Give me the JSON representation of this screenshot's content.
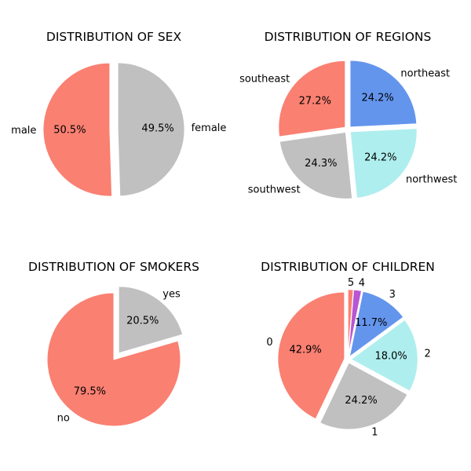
{
  "chart_data": [
    {
      "type": "pie",
      "title": "DISTRIBUTION OF SEX",
      "slices": [
        {
          "label": "male",
          "value": 50.5,
          "pct_label": "50.5%",
          "color": "#fa8072"
        },
        {
          "label": "female",
          "value": 49.5,
          "pct_label": "49.5%",
          "color": "#c0c0c0"
        }
      ]
    },
    {
      "type": "pie",
      "title": "DISTRIBUTION OF REGIONS",
      "slices": [
        {
          "label": "southeast",
          "value": 27.2,
          "pct_label": "27.2%",
          "color": "#fa8072"
        },
        {
          "label": "southwest",
          "value": 24.3,
          "pct_label": "24.3%",
          "color": "#c0c0c0"
        },
        {
          "label": "northwest",
          "value": 24.2,
          "pct_label": "24.2%",
          "color": "#afeeee"
        },
        {
          "label": "northeast",
          "value": 24.2,
          "pct_label": "24.2%",
          "color": "#6495ed"
        }
      ]
    },
    {
      "type": "pie",
      "title": "DISTRIBUTION OF SMOKERS",
      "slices": [
        {
          "label": "no",
          "value": 79.5,
          "pct_label": "79.5%",
          "color": "#fa8072"
        },
        {
          "label": "yes",
          "value": 20.5,
          "pct_label": "20.5%",
          "color": "#c0c0c0"
        }
      ]
    },
    {
      "type": "pie",
      "title": "DISTRIBUTION OF CHILDREN",
      "slices": [
        {
          "label": "0",
          "value": 42.9,
          "pct_label": "42.9%",
          "color": "#fa8072"
        },
        {
          "label": "1",
          "value": 24.2,
          "pct_label": "24.2%",
          "color": "#c0c0c0"
        },
        {
          "label": "2",
          "value": 18.0,
          "pct_label": "18.0%",
          "color": "#afeeee"
        },
        {
          "label": "3",
          "value": 11.7,
          "pct_label": "11.7%",
          "color": "#6495ed"
        },
        {
          "label": "4",
          "value": 1.9,
          "pct_label": "",
          "color": "#ba55d3"
        },
        {
          "label": "5",
          "value": 1.3,
          "pct_label": "",
          "color": "#fa8072"
        }
      ]
    }
  ]
}
